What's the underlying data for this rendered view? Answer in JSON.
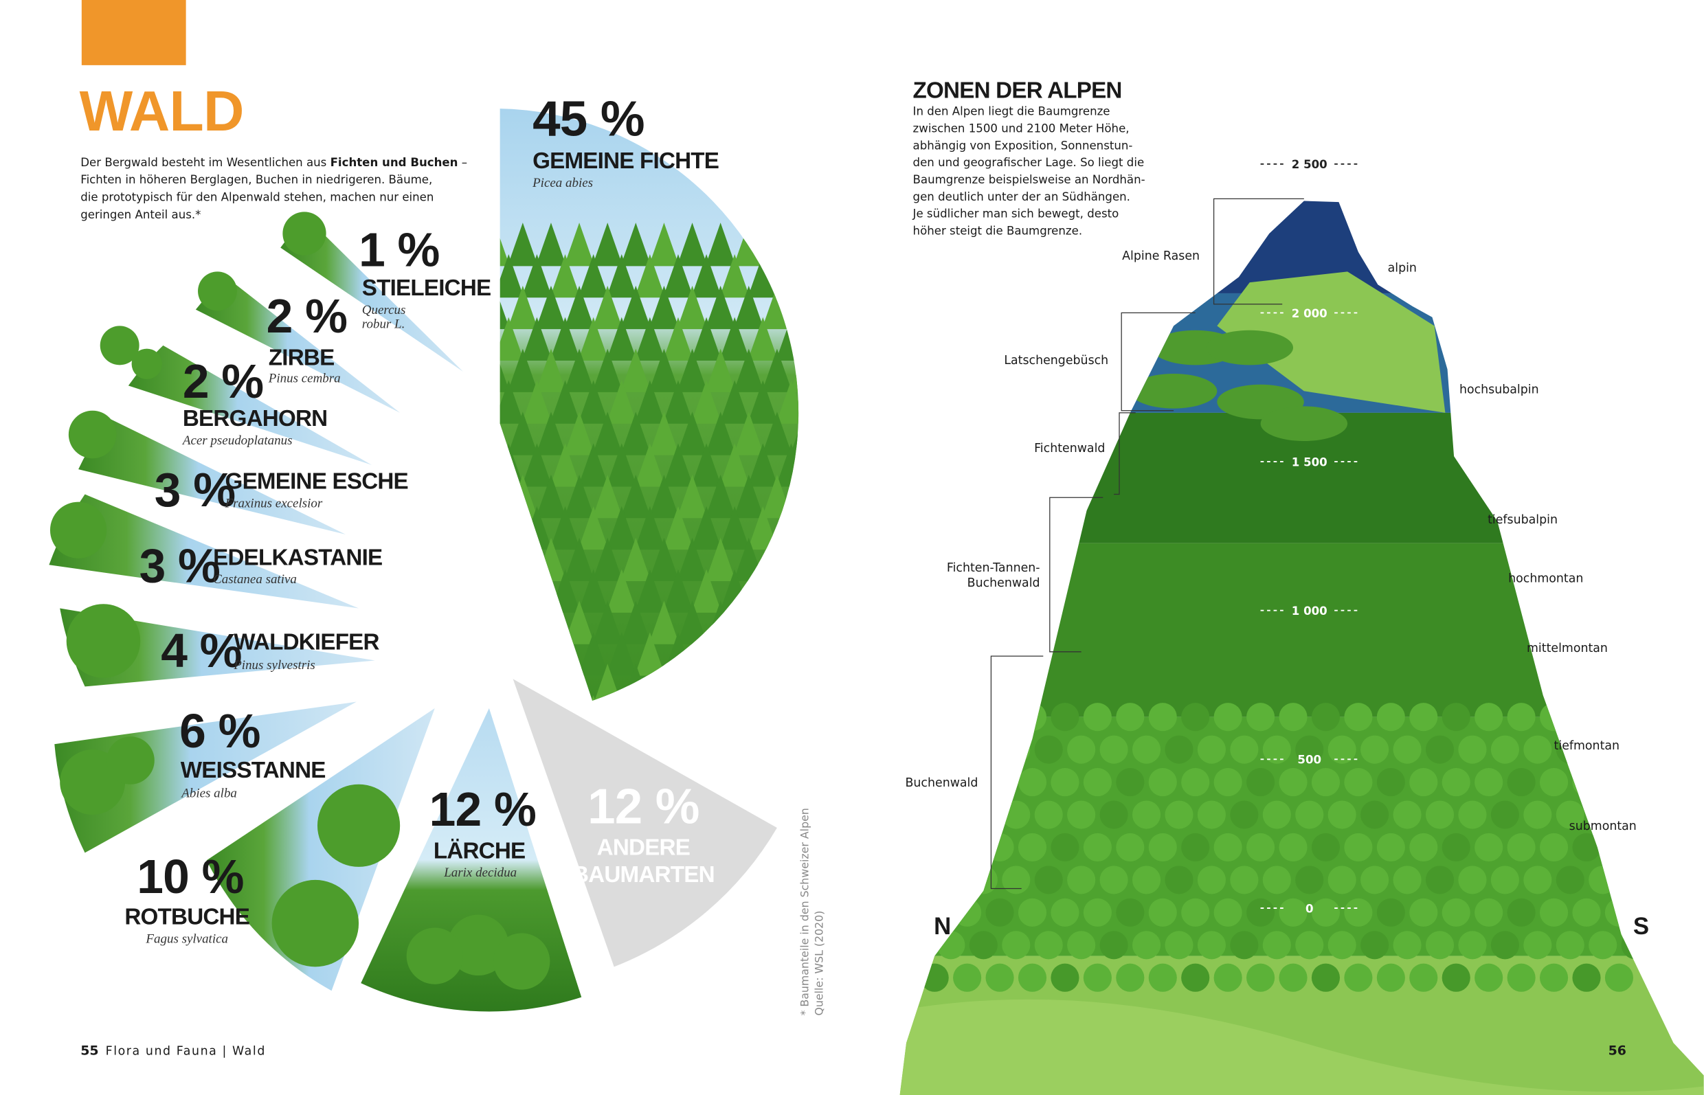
{
  "left_page": {
    "title": "WALD",
    "intro": {
      "start": "Der Bergwald besteht im Wesentlichen aus ",
      "bold": "Fichten und Buchen",
      "end": " –",
      "lines": [
        "Fichten in höheren Berglagen, Buchen in niedrigeren. Bäume,",
        "die prototypisch für den Alpenwald stehen, machen nur einen",
        "geringen Anteil aus.*"
      ]
    },
    "species": [
      {
        "percent": "45 %",
        "name": [
          "GEMEINE FICHTE"
        ],
        "latin": [
          "Picea abies"
        ]
      },
      {
        "percent": "12 %",
        "name": [
          "ANDERE",
          "BAUMARTEN"
        ],
        "latin": []
      },
      {
        "percent": "12 %",
        "name": [
          "LÄRCHE"
        ],
        "latin": [
          "Larix decidua"
        ]
      },
      {
        "percent": "10 %",
        "name": [
          "ROTBUCHE"
        ],
        "latin": [
          "Fagus sylvatica"
        ]
      },
      {
        "percent": "6 %",
        "name": [
          "WEISSTANNE"
        ],
        "latin": [
          "Abies alba"
        ]
      },
      {
        "percent": "4 %",
        "name": [
          "WALDKIEFER"
        ],
        "latin": [
          "Pinus sylvestris"
        ]
      },
      {
        "percent": "3 %",
        "name": [
          "EDELKASTANIE"
        ],
        "latin": [
          "Castanea sativa"
        ]
      },
      {
        "percent": "3 %",
        "name": [
          "GEMEINE ESCHE"
        ],
        "latin": [
          "Fraxinus excelsior"
        ]
      },
      {
        "percent": "2 %",
        "name": [
          "BERGAHORN"
        ],
        "latin": [
          "Acer pseudoplatanus"
        ]
      },
      {
        "percent": "2 %",
        "name": [
          "ZIRBE"
        ],
        "latin": [
          "Pinus cembra"
        ]
      },
      {
        "percent": "1 %",
        "name": [
          "STIELEICHE"
        ],
        "latin": [
          "Quercus",
          "robur L."
        ]
      }
    ],
    "footnote": [
      "* Baumanteile in den Schweizer Alpen",
      "Quelle: WSL (2020)"
    ],
    "page_number": "55",
    "running_head": "Flora und Fauna | Wald"
  },
  "right_page": {
    "title": "ZONEN DER ALPEN",
    "text_lines": [
      "In den Alpen liegt die Baumgrenze",
      "zwischen 1500 und 2100 Meter Höhe,",
      "abhängig von Exposition, Sonnenstun-",
      "den und geografischer Lage. So liegt die",
      "Baumgrenze beispielsweise an Nordhän-",
      "gen deutlich unter der an Südhängen.",
      "Je südlicher man sich bewegt, desto",
      "höher steigt die Baumgrenze."
    ],
    "vegetation_zones": [
      [
        "Alpine Rasen"
      ],
      [
        "Latschengebüsch"
      ],
      [
        "Fichtenwald"
      ],
      [
        "Fichten-Tannen-",
        "Buchenwald"
      ],
      [
        "Buchenwald"
      ]
    ],
    "altitude_zones": [
      "alpin",
      "hochsubalpin",
      "tiefsubalpin",
      "hochmontan",
      "mittelmontan",
      "tiefmontan",
      "submontan"
    ],
    "altitudes": [
      "2 500",
      "2 000",
      "1 500",
      "1 000",
      "500",
      "0"
    ],
    "north": "N",
    "south": "S",
    "page_number": "56"
  }
}
